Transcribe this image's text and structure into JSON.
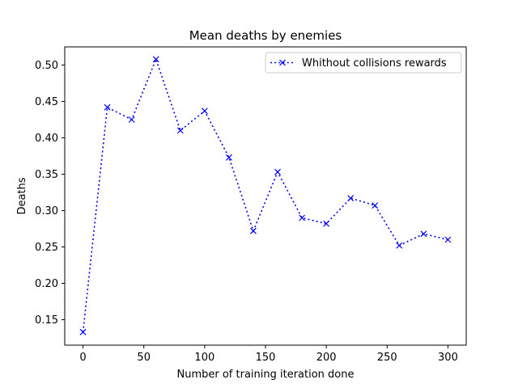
{
  "chart_data": {
    "type": "line",
    "title": "Mean deaths by enemies",
    "xlabel": "Number of training iteration done",
    "ylabel": "Deaths",
    "xlim": [
      -15,
      315
    ],
    "ylim": [
      0.115,
      0.525
    ],
    "x_ticks": [
      0,
      50,
      100,
      150,
      200,
      250,
      300
    ],
    "x_tick_labels": [
      "0",
      "50",
      "100",
      "150",
      "200",
      "250",
      "300"
    ],
    "y_ticks": [
      0.15,
      0.2,
      0.25,
      0.3,
      0.35,
      0.4,
      0.45,
      0.5
    ],
    "y_tick_labels": [
      "0.15",
      "0.20",
      "0.25",
      "0.30",
      "0.35",
      "0.40",
      "0.45",
      "0.50"
    ],
    "grid": false,
    "legend_position": "top-right",
    "series": [
      {
        "name": "Whithout collisions rewards",
        "color": "#0000ff",
        "line_style": "dotted",
        "marker": "x",
        "x": [
          0,
          20,
          40,
          60,
          80,
          100,
          120,
          140,
          160,
          180,
          200,
          220,
          240,
          260,
          280,
          300
        ],
        "y": [
          0.133,
          0.442,
          0.425,
          0.508,
          0.41,
          0.437,
          0.373,
          0.272,
          0.353,
          0.29,
          0.282,
          0.317,
          0.307,
          0.252,
          0.268,
          0.26
        ]
      }
    ]
  }
}
